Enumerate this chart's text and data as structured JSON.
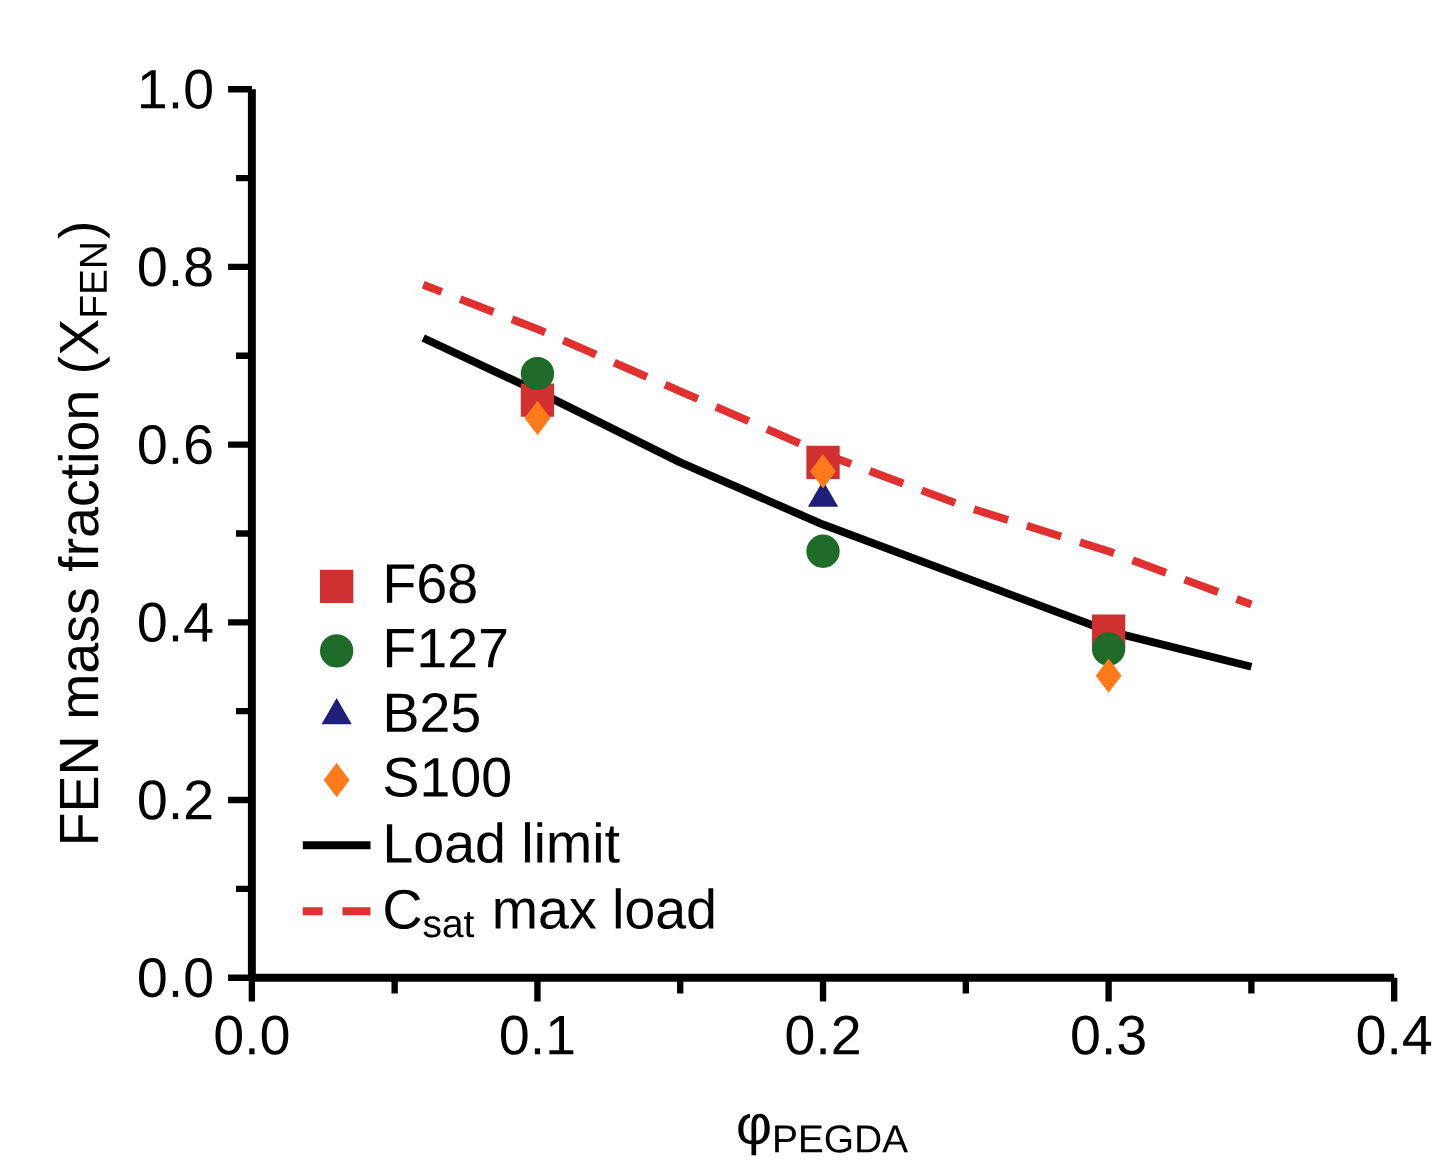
{
  "chart_data": {
    "type": "scatter",
    "xlabel": "φ$_{PEGDA}$",
    "ylabel": "FEN mass fraction (X$_{FEN}$)",
    "xlim": [
      0,
      0.4
    ],
    "ylim": [
      0,
      1
    ],
    "xticks": [
      {
        "value": 0,
        "label": "0.0"
      },
      0.1,
      0.2,
      0.3,
      0.4
    ],
    "yticks": [
      {
        "value": 0,
        "label": "0.0"
      },
      0.2,
      0.4,
      0.6,
      0.8,
      {
        "value": 1,
        "label": "1.0"
      }
    ],
    "grid": false,
    "legend": "left",
    "series": [
      {
        "name": "F68",
        "color": "#d03030",
        "marker": "square",
        "x": [
          0.1,
          0.2,
          0.3
        ],
        "values": [
          0.65,
          0.58,
          0.39
        ]
      },
      {
        "name": "F127",
        "color": "#1e6b2a",
        "marker": "circle",
        "x": [
          0.1,
          0.2,
          0.3
        ],
        "values": [
          0.68,
          0.48,
          0.37
        ]
      },
      {
        "name": "B25",
        "color": "#1f1f7a",
        "marker": "triangle",
        "x": [
          0.2
        ],
        "values": [
          0.54
        ]
      },
      {
        "name": "S100",
        "color": "#ff7a1a",
        "marker": "diamond",
        "x": [
          0.1,
          0.2,
          0.3
        ],
        "values": [
          0.63,
          0.57,
          0.34
        ]
      },
      {
        "name": "Load limit",
        "type": "line",
        "color": "#000000",
        "marker": "none",
        "line_style": "solid",
        "x": [
          0.06,
          0.1,
          0.15,
          0.2,
          0.25,
          0.3,
          0.35
        ],
        "values": [
          0.72,
          0.66,
          0.58,
          0.51,
          0.45,
          0.39,
          0.35
        ]
      },
      {
        "name": "C$_{sat}$ max load",
        "type": "line",
        "color": "#e03030",
        "marker": "none",
        "line_style": "dashed",
        "x": [
          0.06,
          0.1,
          0.15,
          0.2,
          0.25,
          0.3,
          0.35
        ],
        "values": [
          0.78,
          0.73,
          0.66,
          0.59,
          0.53,
          0.48,
          0.42
        ]
      }
    ]
  }
}
